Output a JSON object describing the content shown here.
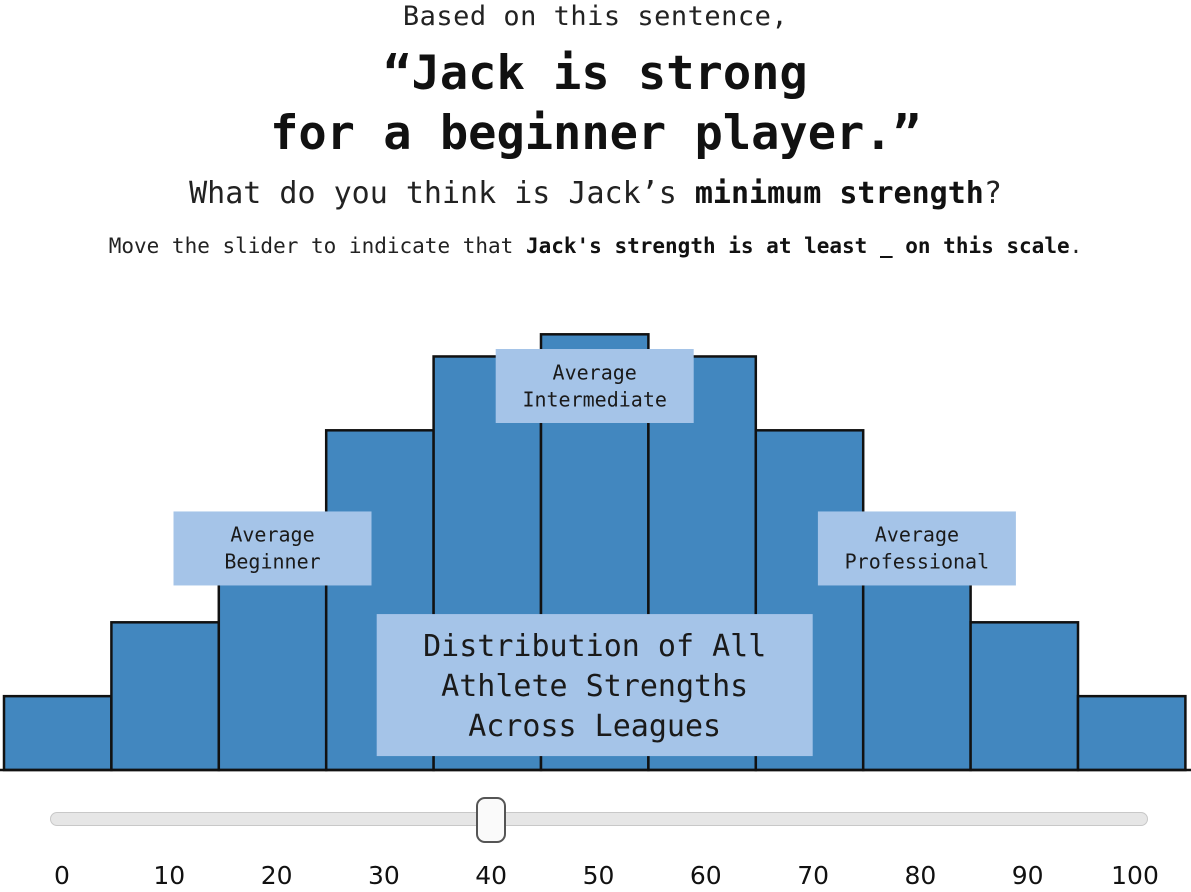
{
  "prompt": {
    "intro": "Based on this sentence,",
    "quote_line1": "“Jack is strong",
    "quote_line2": "for a beginner player.”",
    "question_prefix": "What do you think is Jack’s ",
    "question_bold": "minimum strength",
    "question_suffix": "?",
    "instruction_prefix": "Move the slider to indicate that ",
    "instruction_bold": "Jack's strength is at least _ on this scale",
    "instruction_suffix": "."
  },
  "chart_data": {
    "type": "bar",
    "categories": [
      "0",
      "10",
      "20",
      "30",
      "40",
      "50",
      "60",
      "70",
      "80",
      "90",
      "100"
    ],
    "values": [
      1.0,
      2.0,
      3.3,
      4.6,
      5.6,
      5.9,
      5.6,
      4.6,
      3.3,
      2.0,
      1.0
    ],
    "ylim": [
      0,
      6.5
    ],
    "title": "",
    "xlabel": "",
    "ylabel": "",
    "bar_color": "#4287bf",
    "annotations": [
      {
        "lines": [
          "Average",
          "Beginner"
        ],
        "x": 20,
        "y": 3.0
      },
      {
        "lines": [
          "Average",
          "Intermediate"
        ],
        "x": 50,
        "y": 5.2
      },
      {
        "lines": [
          "Average",
          "Professional"
        ],
        "x": 80,
        "y": 3.0
      },
      {
        "lines": [
          "Distribution of All",
          "Athlete Strengths",
          "Across Leagues"
        ],
        "x": 50,
        "y": 1.15
      }
    ]
  },
  "slider": {
    "min": 0,
    "max": 100,
    "value": 40,
    "ticks": [
      "0",
      "10",
      "20",
      "30",
      "40",
      "50",
      "60",
      "70",
      "80",
      "90",
      "100"
    ]
  }
}
